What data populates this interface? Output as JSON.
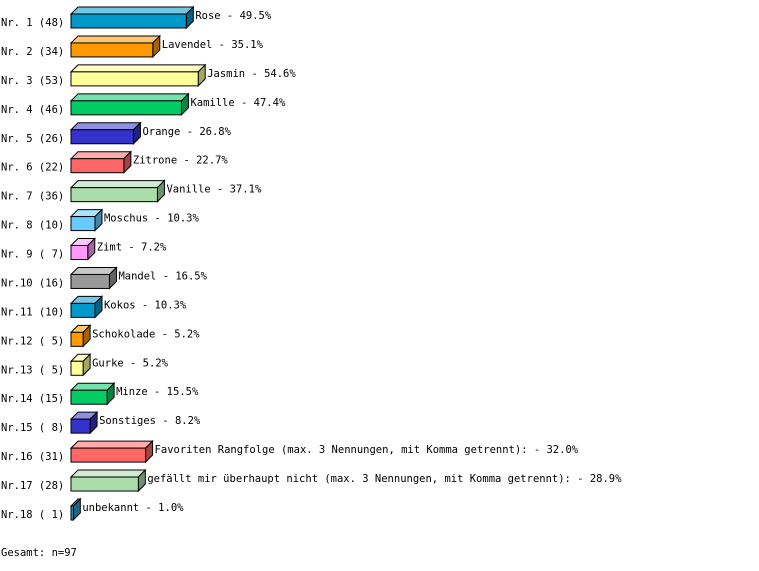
{
  "chart_data": {
    "type": "bar",
    "orientation": "horizontal",
    "style": "3d",
    "grid": false,
    "row_labels": [
      "Nr. 1 (48)",
      "Nr. 2 (34)",
      "Nr. 3 (53)",
      "Nr. 4 (46)",
      "Nr. 5 (26)",
      "Nr. 6 (22)",
      "Nr. 7 (36)",
      "Nr. 8 (10)",
      "Nr. 9 ( 7)",
      "Nr.10 (16)",
      "Nr.11 (10)",
      "Nr.12 ( 5)",
      "Nr.13 ( 5)",
      "Nr.14 (15)",
      "Nr.15 ( 8)",
      "Nr.16 (31)",
      "Nr.17 (28)",
      "Nr.18 ( 1)"
    ],
    "categories": [
      "Rose",
      "Lavendel",
      "Jasmin",
      "Kamille",
      "Orange",
      "Zitrone",
      "Vanille",
      "Moschus",
      "Zimt",
      "Mandel",
      "Kokos",
      "Schokolade",
      "Gurke",
      "Minze",
      "Sonstiges",
      "Favoriten Rangfolge (max. 3 Nennungen, mit Komma getrennt):",
      "gefällt mir überhaupt nicht (max. 3 Nennungen, mit Komma getrennt):",
      "unbekannt"
    ],
    "counts": [
      48,
      34,
      53,
      46,
      26,
      22,
      36,
      10,
      7,
      16,
      10,
      5,
      5,
      15,
      8,
      31,
      28,
      1
    ],
    "values": [
      49.5,
      35.1,
      54.6,
      47.4,
      26.8,
      22.7,
      37.1,
      10.3,
      7.2,
      16.5,
      10.3,
      5.2,
      5.2,
      15.5,
      8.2,
      32.0,
      28.9,
      1.0
    ],
    "data_labels": [
      "Rose -  49.5%",
      "Lavendel -  35.1%",
      "Jasmin -  54.6%",
      "Kamille -  47.4%",
      "Orange -  26.8%",
      "Zitrone -  22.7%",
      "Vanille -  37.1%",
      "Moschus -  10.3%",
      "Zimt -   7.2%",
      "Mandel -  16.5%",
      "Kokos -  10.3%",
      "Schokolade -   5.2%",
      "Gurke -   5.2%",
      "Minze -  15.5%",
      "Sonstiges -   8.2%",
      "Favoriten Rangfolge (max. 3 Nennungen, mit Komma getrennt): -  32.0%",
      "gefällt mir überhaupt nicht (max. 3 Nennungen, mit Komma getrennt): -  28.9%",
      "unbekannt -   1.0%"
    ],
    "colors": [
      "#0099cc",
      "#ff9900",
      "#ffff99",
      "#00cc66",
      "#3333cc",
      "#ff6666",
      "#aaddaa",
      "#66ccff",
      "#ff99ff",
      "#999999",
      "#0099cc",
      "#ff9900",
      "#ffff99",
      "#00cc66",
      "#3333cc",
      "#ff6666",
      "#aaddaa",
      "#3399cc"
    ]
  },
  "footer": {
    "total": "Gesamt: n=97"
  }
}
